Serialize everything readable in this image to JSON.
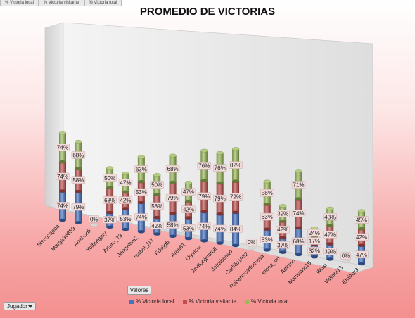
{
  "header": {
    "tabs": [
      "% Victoria local",
      "% Victoria visitante",
      "% Victoria total"
    ]
  },
  "controls": {
    "values_button": "Valores",
    "player_filter": "Jugador"
  },
  "colors": {
    "local": "#4472c4",
    "visitante": "#c0504d",
    "total": "#9bbb59",
    "label_bg": "#f2dcdb"
  },
  "chart_data": {
    "type": "bar",
    "stacked": true,
    "three_d": true,
    "title": "PROMEDIO DE VICTORIAS",
    "categories": [
      "Siscozappa",
      "Marga36859",
      "Anabooli",
      "Yolburgaty",
      "Arturo_73",
      "Jangelcm2",
      "Isabel_f17",
      "Fdsfjgb",
      "Ares51",
      "Ulyvisie",
      "Javilonjetafull",
      "Jatrabesao",
      "Carlillo1962",
      "Robertocarlomesa",
      "elena_c6",
      "Adfrrno",
      "Marisavic15",
      "Wnsi",
      "Valtoni13",
      "Emilior3"
    ],
    "series": [
      {
        "name": "% Victoria local",
        "values": [
          74,
          79,
          0,
          37,
          53,
          74,
          42,
          58,
          53,
          74,
          74,
          84,
          0,
          53,
          37,
          68,
          32,
          39,
          0,
          47
        ]
      },
      {
        "name": "% Victoria visitante",
        "values": [
          74,
          58,
          0,
          63,
          42,
          53,
          58,
          79,
          42,
          79,
          79,
          79,
          0,
          63,
          42,
          74,
          17,
          47,
          0,
          42
        ]
      },
      {
        "name": "% Victoria total",
        "values": [
          74,
          68,
          0,
          50,
          47,
          63,
          50,
          68,
          47,
          76,
          76,
          82,
          0,
          58,
          39,
          71,
          24,
          43,
          0,
          45
        ]
      }
    ],
    "data_labels": [
      [
        "74%",
        "74%",
        "74%"
      ],
      [
        "79%",
        "58%",
        "68%"
      ],
      [
        "0%"
      ],
      [
        "37%",
        "63%",
        "50%"
      ],
      [
        "53%",
        "42%",
        "47%"
      ],
      [
        "74%",
        "53%",
        "63%"
      ],
      [
        "42%",
        "58%",
        "50%"
      ],
      [
        "58%",
        "79%",
        "68%"
      ],
      [
        "53%",
        "42%",
        "47%"
      ],
      [
        "74%",
        "79%",
        "76%"
      ],
      [
        "74%",
        "79%",
        "76%"
      ],
      [
        "84%",
        "79%",
        "82%"
      ],
      [
        "0%"
      ],
      [
        "53%",
        "63%",
        "58%"
      ],
      [
        "37%",
        "42%",
        "39%"
      ],
      [
        "68%",
        "74%",
        "71%"
      ],
      [
        "32%",
        "17%",
        "24%"
      ],
      [
        "39%",
        "47%",
        "43%"
      ],
      [
        "0%"
      ],
      [
        "47%",
        "42%",
        "45%"
      ]
    ],
    "legend_position": "bottom",
    "grid": false
  }
}
